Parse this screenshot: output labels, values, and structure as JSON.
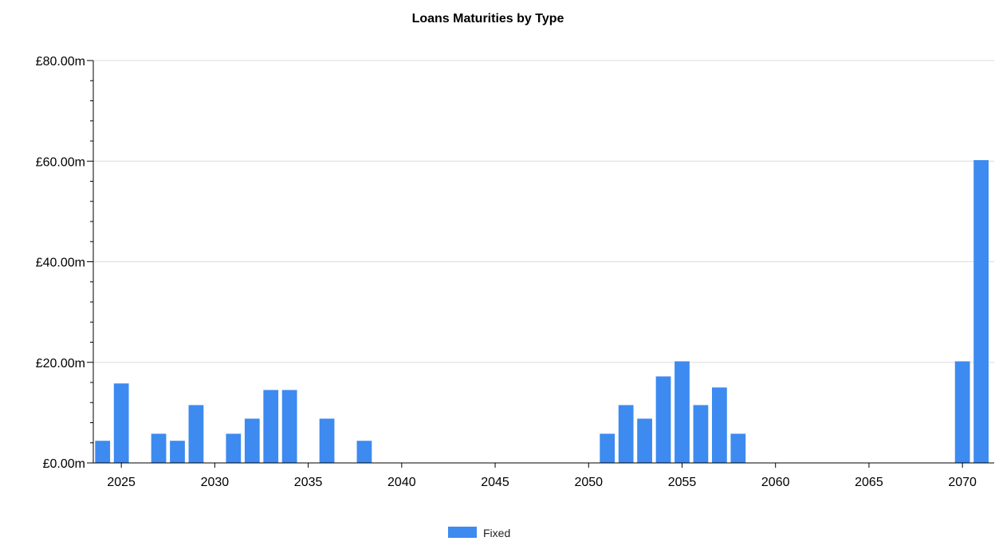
{
  "chart_data": {
    "type": "bar",
    "title": "Loans Maturities by Type",
    "xlabel": "",
    "ylabel": "",
    "xlim": [
      2023.5,
      2071.7
    ],
    "ylim": [
      0,
      80
    ],
    "x_ticks": [
      2025,
      2030,
      2035,
      2040,
      2045,
      2050,
      2055,
      2060,
      2065,
      2070
    ],
    "y_ticks": [
      0,
      20,
      40,
      60,
      80
    ],
    "y_tick_labels": [
      "£0.00m",
      "£20.00m",
      "£40.00m",
      "£60.00m",
      "£80.00m"
    ],
    "x_tick_labels": [
      "2025",
      "2030",
      "2035",
      "2040",
      "2045",
      "2050",
      "2055",
      "2060",
      "2065",
      "2070"
    ],
    "grid": true,
    "legend_position": "bottom",
    "series": [
      {
        "name": "Fixed",
        "color": "#3d8af0",
        "x": [
          2024,
          2025,
          2027,
          2028,
          2029,
          2031,
          2032,
          2033,
          2034,
          2036,
          2038,
          2051,
          2052,
          2053,
          2054,
          2055,
          2056,
          2057,
          2058,
          2070,
          2071
        ],
        "values": [
          4.4,
          15.8,
          5.8,
          4.4,
          11.5,
          5.8,
          8.8,
          14.5,
          14.5,
          8.8,
          4.4,
          5.8,
          11.5,
          8.8,
          17.2,
          20.2,
          11.5,
          15.0,
          5.8,
          20.2,
          60.2
        ]
      }
    ]
  }
}
